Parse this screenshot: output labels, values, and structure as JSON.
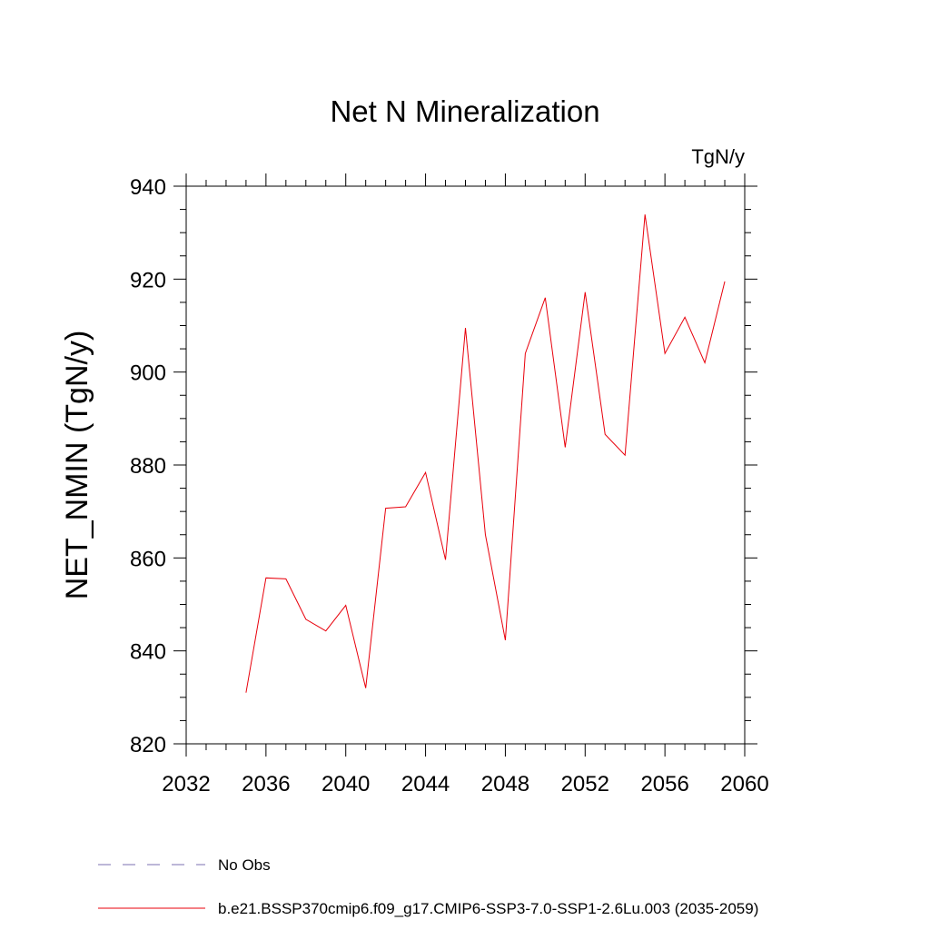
{
  "chart_data": {
    "type": "line",
    "title": "Net N Mineralization",
    "units_label": "TgN/y",
    "xlabel": "",
    "ylabel": "NET_NMIN  (TgN/y)",
    "xlim": [
      2032,
      2060
    ],
    "ylim": [
      820,
      940
    ],
    "xticks": [
      2032,
      2036,
      2040,
      2044,
      2048,
      2052,
      2056,
      2060
    ],
    "yticks": [
      820,
      840,
      860,
      880,
      900,
      920,
      940
    ],
    "grid": false,
    "legend_position": "bottom",
    "series": [
      {
        "name": "b.e21.BSSP370cmip6.f09_g17.CMIP6-SSP3-7.0-SSP1-2.6Lu.003 (2035-2059)",
        "color": "#e8000b",
        "x": [
          2035,
          2036,
          2037,
          2038,
          2039,
          2040,
          2041,
          2042,
          2043,
          2044,
          2045,
          2046,
          2047,
          2048,
          2049,
          2050,
          2051,
          2052,
          2053,
          2054,
          2055,
          2056,
          2057,
          2058,
          2059
        ],
        "y": [
          831,
          855.7,
          855.5,
          846.8,
          844.3,
          849.8,
          832,
          870.7,
          871,
          878.4,
          859.6,
          909.5,
          865,
          842.3,
          904,
          916,
          883.8,
          917.2,
          886.6,
          882.1,
          933.9,
          904,
          911.8,
          902,
          919.5
        ]
      }
    ],
    "legend": [
      {
        "label": "No Obs",
        "style": "dashed",
        "color": "#7b6fb0"
      },
      {
        "label": "b.e21.BSSP370cmip6.f09_g17.CMIP6-SSP3-7.0-SSP1-2.6Lu.003 (2035-2059)",
        "style": "solid",
        "color": "#e8000b"
      }
    ]
  }
}
